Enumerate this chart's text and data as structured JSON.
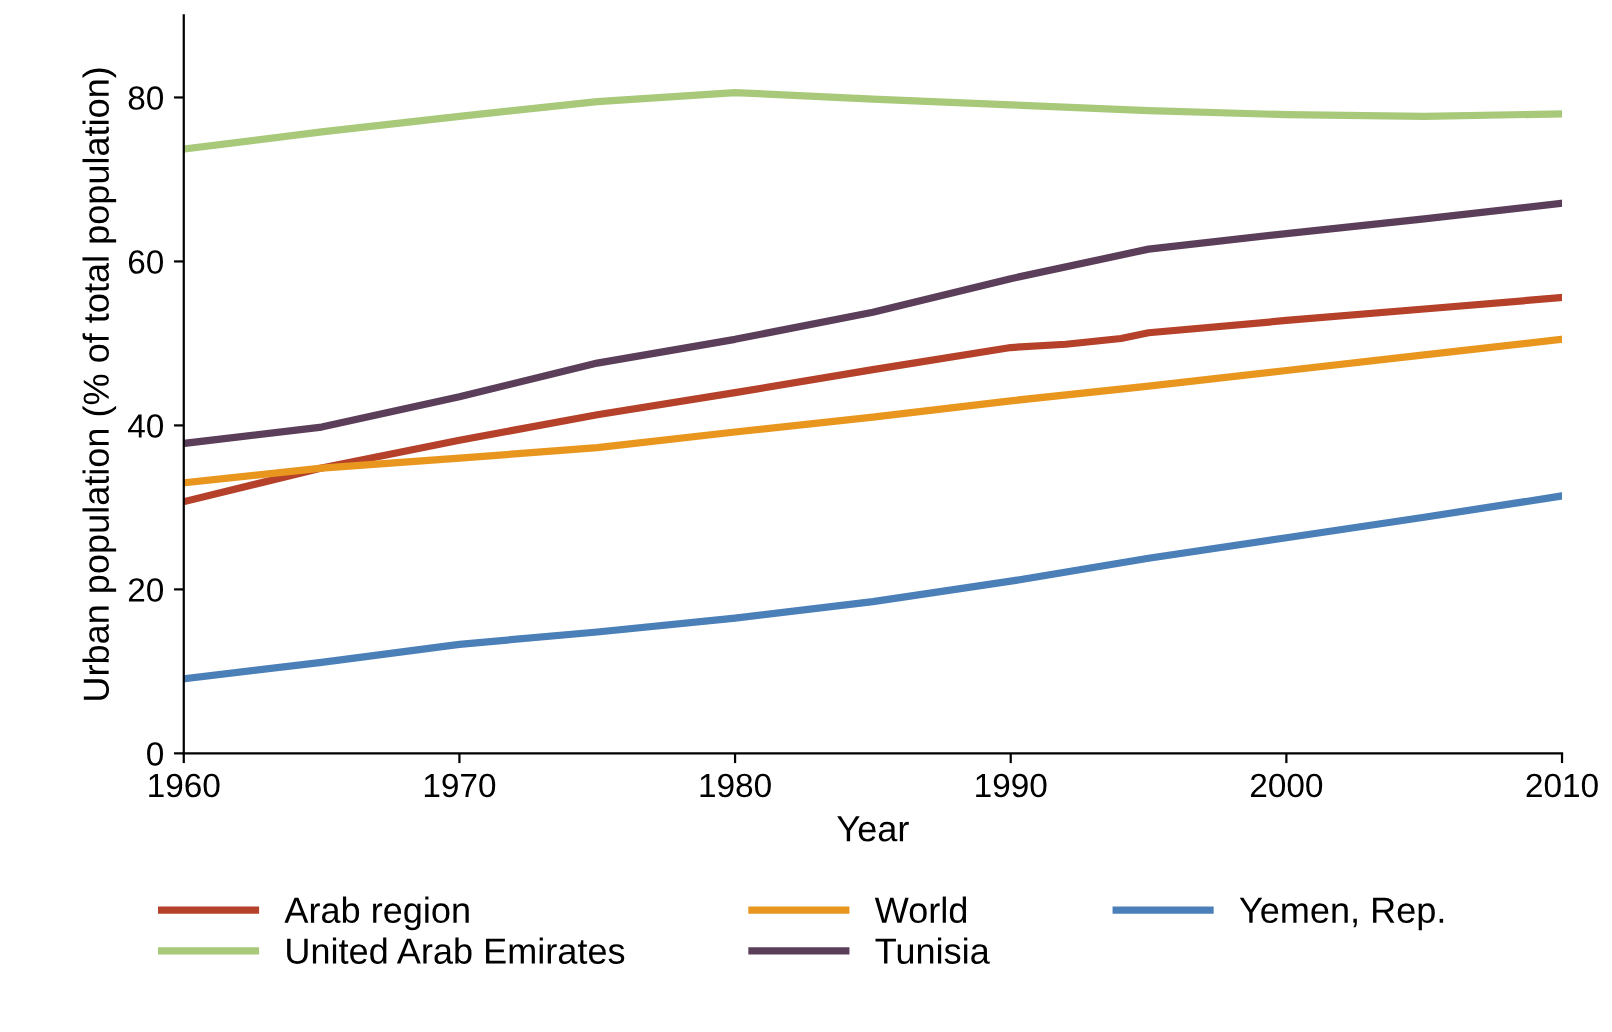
{
  "chart_data": {
    "type": "line",
    "xlabel": "Year",
    "ylabel": "Urban population (% of total population)",
    "xlim": [
      1960,
      2010
    ],
    "xticks": [
      1960,
      1970,
      1980,
      1990,
      2000,
      2010
    ],
    "ylim": [
      0,
      90
    ],
    "yticks": [
      0,
      20,
      40,
      60,
      80
    ],
    "grid": false,
    "legend": "bottom",
    "marker": "none",
    "line_style": "solid",
    "series": [
      {
        "name": "Arab region",
        "color": "#b5412a",
        "x": [
          1960,
          1965,
          1970,
          1975,
          1980,
          1985,
          1990,
          1992,
          1994,
          1995,
          2000,
          2005,
          2010
        ],
        "values": [
          30.7,
          34.8,
          38.2,
          41.3,
          44.0,
          46.8,
          49.5,
          49.9,
          50.6,
          51.3,
          52.8,
          54.2,
          55.6
        ]
      },
      {
        "name": "World",
        "color": "#e8961e",
        "x": [
          1960,
          1965,
          1970,
          1975,
          1980,
          1985,
          1990,
          1995,
          2000,
          2005,
          2010
        ],
        "values": [
          33.0,
          34.8,
          36.0,
          37.3,
          39.2,
          41.0,
          43.0,
          44.8,
          46.7,
          48.6,
          50.5
        ]
      },
      {
        "name": "Yemen, Rep.",
        "color": "#4a7fb8",
        "x": [
          1960,
          1965,
          1970,
          1975,
          1980,
          1985,
          1990,
          1995,
          2000,
          2005,
          2010
        ],
        "values": [
          9.1,
          11.1,
          13.3,
          14.8,
          16.5,
          18.5,
          21.0,
          23.8,
          26.3,
          28.8,
          31.4
        ]
      },
      {
        "name": "United Arab Emirates",
        "color": "#a8c97a",
        "x": [
          1960,
          1965,
          1970,
          1975,
          1980,
          1985,
          1990,
          1995,
          2000,
          2005,
          2010
        ],
        "values": [
          73.7,
          75.8,
          77.7,
          79.5,
          80.6,
          79.8,
          79.1,
          78.4,
          77.9,
          77.7,
          78.0
        ]
      },
      {
        "name": "Tunisia",
        "color": "#5b3f5a",
        "x": [
          1960,
          1965,
          1970,
          1975,
          1980,
          1985,
          1990,
          1995,
          2000,
          2005,
          2010
        ],
        "values": [
          37.8,
          39.8,
          43.5,
          47.6,
          50.5,
          53.8,
          57.9,
          61.5,
          63.4,
          65.2,
          67.1
        ]
      }
    ]
  }
}
